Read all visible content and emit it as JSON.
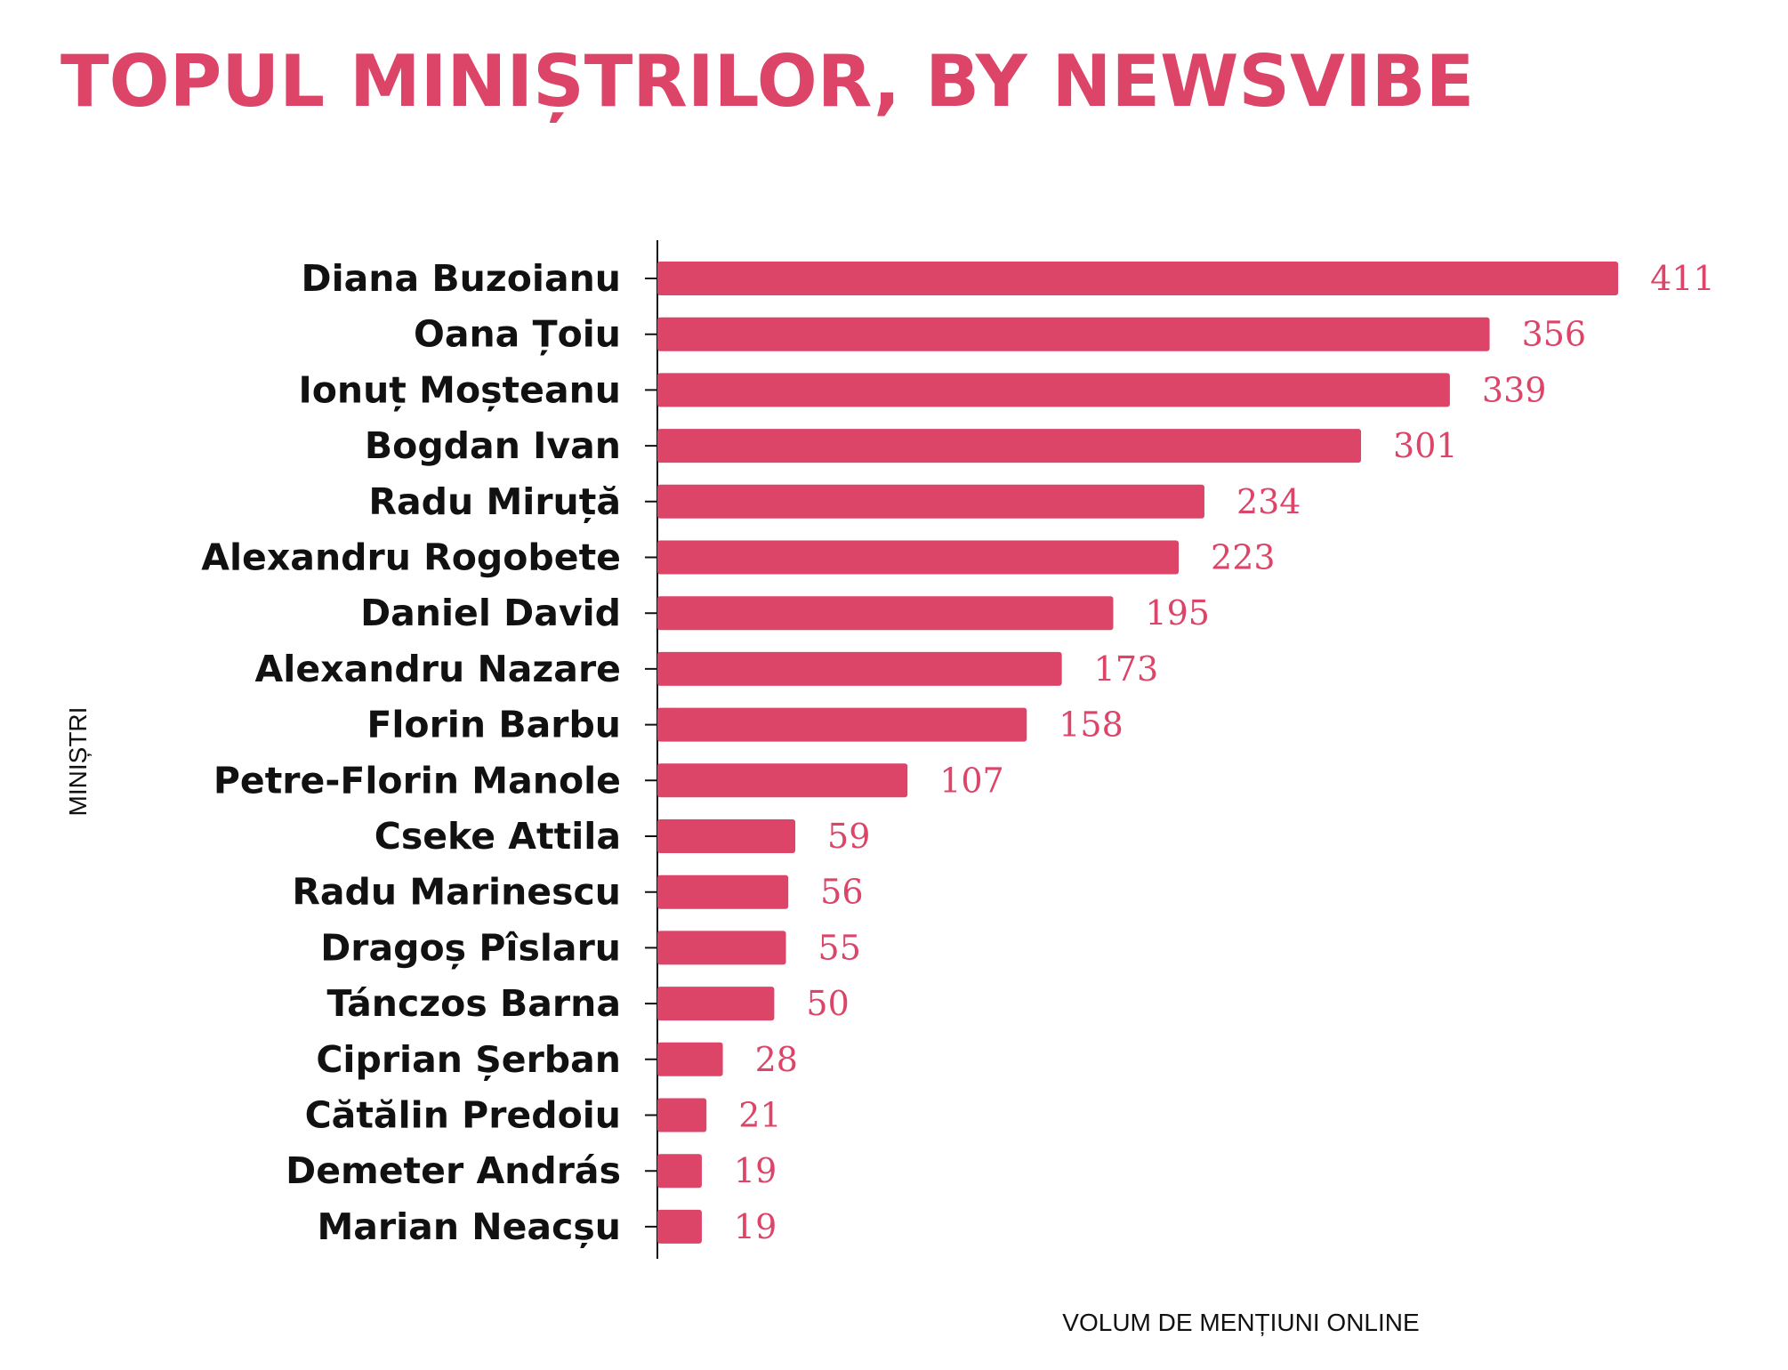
{
  "chart_data": {
    "type": "bar",
    "orientation": "horizontal",
    "title": "TOPUL MINIȘTRILOR, BY NEWSVIBE",
    "xlabel": "VOLUM DE MENȚIUNI ONLINE",
    "ylabel": "MINIȘTRI",
    "categories": [
      "Diana Buzoianu",
      "Oana Țoiu",
      "Ionuț Moșteanu",
      "Bogdan Ivan",
      "Radu Miruță",
      "Alexandru Rogobete",
      "Daniel David",
      "Alexandru Nazare",
      "Florin Barbu",
      "Petre-Florin Manole",
      "Cseke Attila",
      "Radu Marinescu",
      "Dragoș Pîslaru",
      "Tánczos Barna",
      "Ciprian Șerban",
      "Cătălin Predoiu",
      "Demeter András",
      "Marian Neacșu"
    ],
    "values": [
      411,
      356,
      339,
      301,
      234,
      223,
      195,
      173,
      158,
      107,
      59,
      56,
      55,
      50,
      28,
      21,
      19,
      19
    ],
    "xlim": [
      0,
      450
    ],
    "grid": false,
    "legend": "none",
    "bar_color": "#dc4468",
    "title_color": "#dc4468",
    "value_label_color": "#dc4468"
  }
}
